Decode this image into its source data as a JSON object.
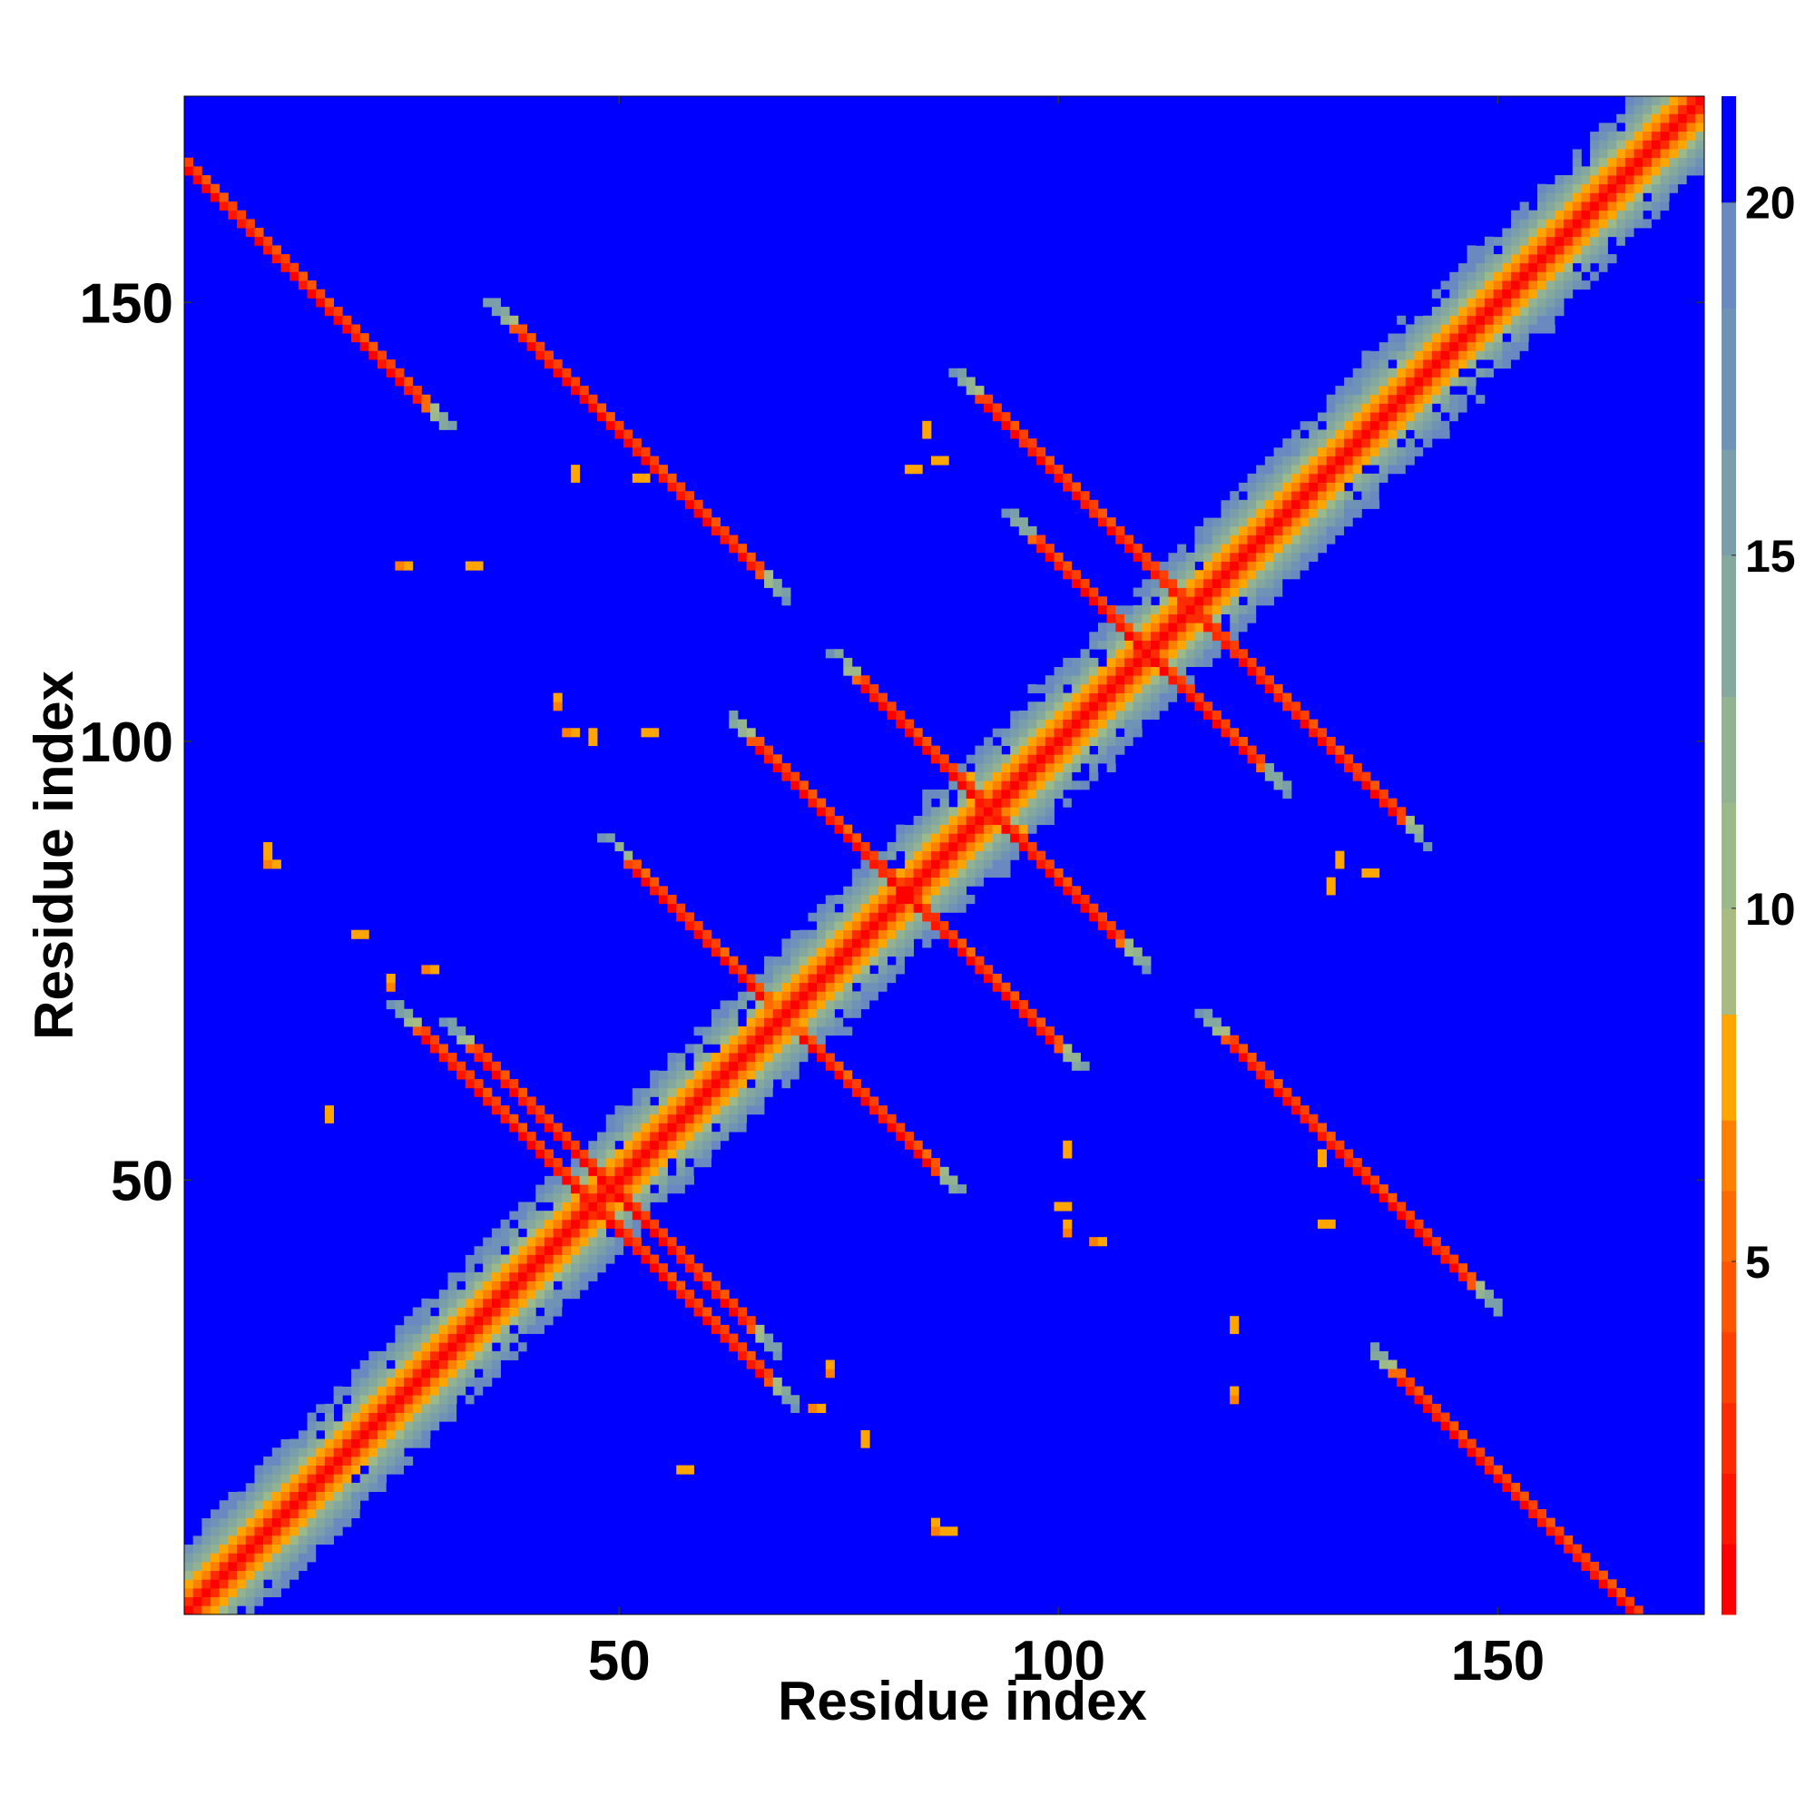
{
  "chart_data": {
    "type": "heatmap",
    "title": "",
    "xlabel": "Residue index",
    "ylabel": "Residue index",
    "xlim": [
      1,
      173
    ],
    "ylim": [
      1,
      173
    ],
    "n_residues": 173,
    "x_ticks": [
      50,
      100,
      150
    ],
    "y_ticks": [
      50,
      100,
      150
    ],
    "colorbar": {
      "range": [
        0,
        21.5
      ],
      "ticks": [
        5,
        10,
        15,
        20
      ],
      "colors": [
        {
          "from": 0.0,
          "to": 1.0,
          "color": "#ff0000"
        },
        {
          "from": 1.0,
          "to": 2.0,
          "color": "#ff1500"
        },
        {
          "from": 2.0,
          "to": 3.0,
          "color": "#ff2b00"
        },
        {
          "from": 3.0,
          "to": 4.0,
          "color": "#ff4000"
        },
        {
          "from": 4.0,
          "to": 5.0,
          "color": "#ff5500"
        },
        {
          "from": 5.0,
          "to": 6.0,
          "color": "#ff6a00"
        },
        {
          "from": 6.0,
          "to": 7.0,
          "color": "#ff8000"
        },
        {
          "from": 7.0,
          "to": 8.5,
          "color": "#ffa500"
        },
        {
          "from": 8.5,
          "to": 10.0,
          "color": "#a8bb82"
        },
        {
          "from": 10.0,
          "to": 11.5,
          "color": "#9cb98a"
        },
        {
          "from": 11.5,
          "to": 13.0,
          "color": "#92b292"
        },
        {
          "from": 13.0,
          "to": 15.0,
          "color": "#85a89e"
        },
        {
          "from": 15.0,
          "to": 16.5,
          "color": "#7a9eaa"
        },
        {
          "from": 16.5,
          "to": 18.5,
          "color": "#6e93b6"
        },
        {
          "from": 18.5,
          "to": 20.0,
          "color": "#6a89c0"
        },
        {
          "from": 20.0,
          "to": 21.5,
          "color": "#0000ff"
        }
      ]
    },
    "background_color": "#0000ff",
    "value_cap": 21.5,
    "matrix_symmetric": true,
    "bands": [
      {
        "kind": "diagonal",
        "along": "i-j",
        "center": 0,
        "from": 1,
        "to": 173,
        "width": 5.5
      },
      {
        "kind": "anti",
        "sum": 166,
        "from": 1,
        "to": 27,
        "width": 3.2,
        "noise": 0.25
      },
      {
        "kind": "anti",
        "sum": 98,
        "from": 48,
        "to": 64,
        "width": 2.8,
        "noise": 0.25
      },
      {
        "kind": "anti",
        "sum": 137,
        "from": 52,
        "to": 66,
        "width": 2.6,
        "noise": 0.3
      },
      {
        "kind": "anti",
        "sum": 220,
        "from": 98,
        "to": 118,
        "width": 2.8,
        "noise": 0.25
      },
      {
        "kind": "anti",
        "sum": 185,
        "from": 120,
        "to": 146,
        "width": 3.0,
        "noise": 0.25
      },
      {
        "kind": "anti",
        "sum": 94,
        "from": 28,
        "to": 47,
        "width": 3.0,
        "noise": 0.25
      },
      {
        "kind": "anti",
        "sum": 184,
        "from": 78,
        "to": 98,
        "width": 3.0,
        "noise": 0.3
      },
      {
        "kind": "anti",
        "sum": 230,
        "from": 115,
        "to": 138,
        "width": 3.0,
        "noise": 0.3
      },
      {
        "kind": "anti",
        "sum": 165,
        "from": 66,
        "to": 85,
        "width": 3.0,
        "noise": 0.3
      }
    ],
    "blobs": [
      {
        "i": 10,
        "j": 86,
        "value": 6
      },
      {
        "i": 20,
        "j": 78,
        "value": 7
      },
      {
        "i": 28,
        "j": 74,
        "value": 6
      },
      {
        "i": 25,
        "j": 120,
        "value": 6
      },
      {
        "i": 33,
        "j": 120,
        "value": 7
      },
      {
        "i": 44,
        "j": 101,
        "value": 6
      },
      {
        "i": 53,
        "j": 101,
        "value": 7
      },
      {
        "i": 52,
        "j": 130,
        "value": 7
      },
      {
        "i": 83,
        "j": 131,
        "value": 7
      },
      {
        "i": 86,
        "j": 132,
        "value": 7
      },
      {
        "i": 87,
        "j": 10,
        "value": 7
      },
      {
        "i": 95,
        "j": 90,
        "value": 7
      },
      {
        "i": 100,
        "j": 47,
        "value": 7
      },
      {
        "i": 104,
        "j": 43,
        "value": 6
      },
      {
        "i": 130,
        "j": 45,
        "value": 7
      },
      {
        "i": 135,
        "j": 85,
        "value": 7
      },
      {
        "i": 57,
        "j": 17,
        "value": 7
      },
      {
        "i": 72,
        "j": 24,
        "value": 6
      }
    ]
  }
}
